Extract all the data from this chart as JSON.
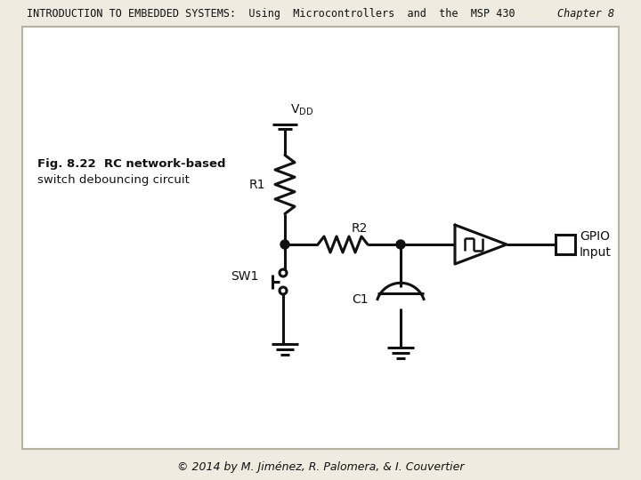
{
  "bg_color": "#f0ebe0",
  "inner_bg": "#ffffff",
  "border_color": "#b8b0a0",
  "title_text": "INTRODUCTION TO EMBEDDED SYSTEMS:  Using  Microcontrollers  and  the  MSP 430",
  "chapter_text": "Chapter 8",
  "footer_text": "© 2014 by M. Jiménez, R. Palomera, & I. Couvertier",
  "fig_label": "Fig. 8.22",
  "fig_desc_line1": "RC network-based",
  "fig_desc_line2": "switch debouncing circuit",
  "line_color": "#111111",
  "text_color": "#111111",
  "header_font_size": 8.5,
  "footer_font_size": 9
}
